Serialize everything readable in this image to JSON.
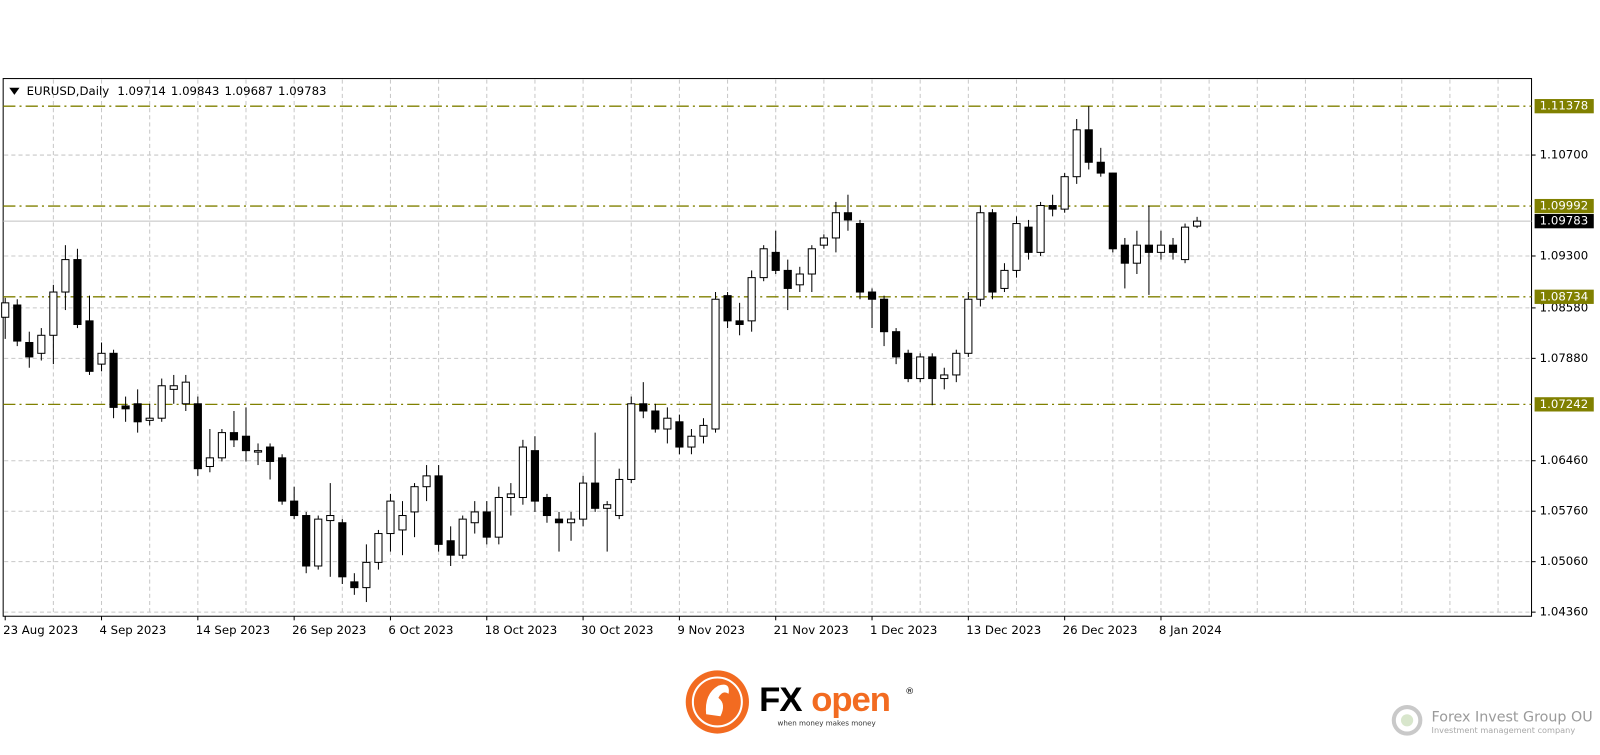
{
  "chart_data": {
    "type": "candlestick",
    "title": "EURUSD,Daily",
    "categories": [
      "23 Aug 2023",
      null,
      null,
      null,
      null,
      null,
      null,
      null,
      "4 Sep 2023",
      null,
      null,
      null,
      null,
      null,
      null,
      null,
      "14 Sep 2023",
      null,
      null,
      null,
      null,
      null,
      null,
      null,
      "26 Sep 2023",
      null,
      null,
      null,
      null,
      null,
      null,
      null,
      "6 Oct 2023",
      null,
      null,
      null,
      null,
      null,
      null,
      null,
      "18 Oct 2023",
      null,
      null,
      null,
      null,
      null,
      null,
      null,
      "30 Oct 2023",
      null,
      null,
      null,
      null,
      null,
      null,
      null,
      "9 Nov 2023",
      null,
      null,
      null,
      null,
      null,
      null,
      null,
      "21 Nov 2023",
      null,
      null,
      null,
      null,
      null,
      null,
      null,
      "1 Dec 2023",
      null,
      null,
      null,
      null,
      null,
      null,
      null,
      "13 Dec 2023",
      null,
      null,
      null,
      null,
      null,
      null,
      null,
      "26 Dec 2023",
      null,
      null,
      null,
      null,
      null,
      null,
      null,
      "8 Jan 2024",
      null,
      null,
      null
    ],
    "open": [
      1.0845,
      1.0862,
      1.081,
      1.0795,
      1.082,
      1.088,
      1.0925,
      1.084,
      1.078,
      1.0795,
      1.0722,
      1.0725,
      1.0702,
      1.0705,
      1.0745,
      1.0725,
      1.0725,
      1.0638,
      1.065,
      1.0685,
      1.068,
      1.0658,
      1.0665,
      1.065,
      1.059,
      1.057,
      1.05,
      1.0563,
      1.056,
      1.0478,
      1.047,
      1.0505,
      1.0545,
      1.055,
      1.0575,
      1.061,
      1.0625,
      1.0535,
      1.0515,
      1.056,
      1.0575,
      1.054,
      1.0595,
      1.0595,
      1.066,
      1.0595,
      1.0565,
      1.056,
      1.0565,
      1.0615,
      1.058,
      1.057,
      1.062,
      1.0725,
      1.0715,
      1.069,
      1.07,
      1.0665,
      1.068,
      1.069,
      1.0875,
      1.084,
      1.084,
      1.09,
      1.0935,
      1.091,
      1.089,
      1.0905,
      1.0945,
      1.0955,
      1.099,
      1.0975,
      1.088,
      1.087,
      1.0825,
      1.0795,
      1.076,
      1.079,
      1.076,
      1.0765,
      1.0795,
      1.087,
      1.099,
      1.0885,
      1.091,
      1.097,
      1.0935,
      1.1,
      1.0995,
      1.104,
      1.1105,
      1.106,
      1.1045,
      1.0945,
      1.092,
      1.0945,
      1.0935,
      1.0945,
      1.0925,
      1.09714
    ],
    "high": [
      1.0872,
      1.087,
      1.0825,
      1.083,
      1.089,
      1.0945,
      1.094,
      1.0875,
      1.081,
      1.08,
      1.0735,
      1.0745,
      1.0725,
      1.076,
      1.0765,
      1.0765,
      1.0735,
      1.069,
      1.069,
      1.0715,
      1.072,
      1.067,
      1.067,
      1.0655,
      1.061,
      1.0575,
      1.057,
      1.0615,
      1.0565,
      1.049,
      1.053,
      1.055,
      1.06,
      1.059,
      1.0615,
      1.064,
      1.064,
      1.0555,
      1.057,
      1.059,
      1.059,
      1.061,
      1.0615,
      1.0675,
      1.068,
      1.06,
      1.0575,
      1.0575,
      1.0625,
      1.0685,
      1.059,
      1.0635,
      1.0735,
      1.0755,
      1.0725,
      1.072,
      1.071,
      1.069,
      1.0705,
      1.088,
      1.088,
      1.0865,
      1.091,
      1.0945,
      1.0965,
      1.0925,
      1.0915,
      1.0945,
      1.096,
      1.1005,
      1.1015,
      1.098,
      1.0885,
      1.0875,
      1.083,
      1.08,
      1.0795,
      1.0795,
      1.0775,
      1.08,
      1.088,
      1.1,
      1.0995,
      1.092,
      1.0985,
      1.098,
      1.1005,
      1.1015,
      1.1045,
      1.112,
      1.11378,
      1.108,
      1.1045,
      1.0955,
      1.0965,
      1.1,
      1.0965,
      1.0955,
      1.0975,
      1.09843
    ],
    "low": [
      1.0815,
      1.0805,
      1.0775,
      1.0785,
      1.078,
      1.0855,
      1.083,
      1.0765,
      1.077,
      1.0705,
      1.07,
      1.0685,
      1.0695,
      1.07,
      1.0725,
      1.0715,
      1.0625,
      1.063,
      1.0645,
      1.0665,
      1.0645,
      1.064,
      1.062,
      1.0585,
      1.0565,
      1.049,
      1.0495,
      1.0485,
      1.0475,
      1.046,
      1.045,
      1.0495,
      1.052,
      1.0515,
      1.054,
      1.059,
      1.052,
      1.05,
      1.051,
      1.0545,
      1.053,
      1.053,
      1.057,
      1.0585,
      1.0575,
      1.056,
      1.052,
      1.0535,
      1.0555,
      1.0575,
      1.052,
      1.0565,
      1.0615,
      1.0705,
      1.0685,
      1.067,
      1.0655,
      1.0655,
      1.067,
      1.0685,
      1.083,
      1.082,
      1.0825,
      1.0895,
      1.0905,
      1.0855,
      1.088,
      1.088,
      1.094,
      1.0935,
      1.0965,
      1.087,
      1.083,
      1.0805,
      1.078,
      1.0755,
      1.0755,
      1.0723,
      1.0745,
      1.0755,
      1.079,
      1.086,
      1.087,
      1.088,
      1.09,
      1.0925,
      1.093,
      1.0985,
      1.099,
      1.103,
      1.105,
      1.104,
      1.0935,
      1.0885,
      1.0905,
      1.0876,
      1.0925,
      1.0925,
      1.092,
      1.09687
    ],
    "close": [
      1.0865,
      1.0812,
      1.079,
      1.082,
      1.088,
      1.0925,
      1.0835,
      1.077,
      1.0795,
      1.072,
      1.0718,
      1.07,
      1.0705,
      1.075,
      1.075,
      1.0755,
      1.0635,
      1.065,
      1.0685,
      1.0675,
      1.066,
      1.066,
      1.0645,
      1.059,
      1.057,
      1.05,
      1.0565,
      1.057,
      1.0485,
      1.047,
      1.0505,
      1.0545,
      1.059,
      1.057,
      1.061,
      1.0625,
      1.053,
      1.0515,
      1.0565,
      1.0575,
      1.054,
      1.0595,
      1.06,
      1.0665,
      1.059,
      1.057,
      1.056,
      1.0565,
      1.0615,
      1.058,
      1.0585,
      1.062,
      1.0725,
      1.0715,
      1.069,
      1.0705,
      1.0665,
      1.068,
      1.0695,
      1.087,
      1.084,
      1.0835,
      1.09,
      1.094,
      1.091,
      1.0885,
      1.0905,
      1.094,
      1.0955,
      1.099,
      1.098,
      1.088,
      1.087,
      1.0825,
      1.079,
      1.076,
      1.079,
      1.076,
      1.0765,
      1.0795,
      1.087,
      1.099,
      1.088,
      1.091,
      1.0975,
      1.0935,
      1.1,
      1.0995,
      1.104,
      1.1105,
      1.106,
      1.1045,
      1.094,
      1.092,
      1.0945,
      1.0935,
      1.0945,
      1.0935,
      1.097,
      1.09783
    ],
    "up_color": "#ffffff",
    "down_color": "#000000",
    "ylim": [
      1.04303,
      1.11761
    ],
    "yticks": [
      {
        "value": 1.0436,
        "label": "1.04360"
      },
      {
        "value": 1.0506,
        "label": "1.05060"
      },
      {
        "value": 1.0576,
        "label": "1.05760"
      },
      {
        "value": 1.0646,
        "label": "1.06460"
      },
      {
        "value": 1.0788,
        "label": "1.07880"
      },
      {
        "value": 1.0858,
        "label": "1.08580"
      },
      {
        "value": 1.093,
        "label": "1.09300"
      },
      {
        "value": 1.107,
        "label": "1.10700"
      }
    ],
    "grid": true,
    "levels": [
      1.11378,
      1.09992,
      1.08734,
      1.07242
    ],
    "level_color": "#808000",
    "price_line_color": "#c0c0c0"
  },
  "branding": {
    "logo_fx": "FX",
    "logo_open": "open",
    "registered": "®",
    "tagline": "when money makes money",
    "company": "Forex Invest Group OU",
    "company_subtitle": "Investment management company"
  }
}
